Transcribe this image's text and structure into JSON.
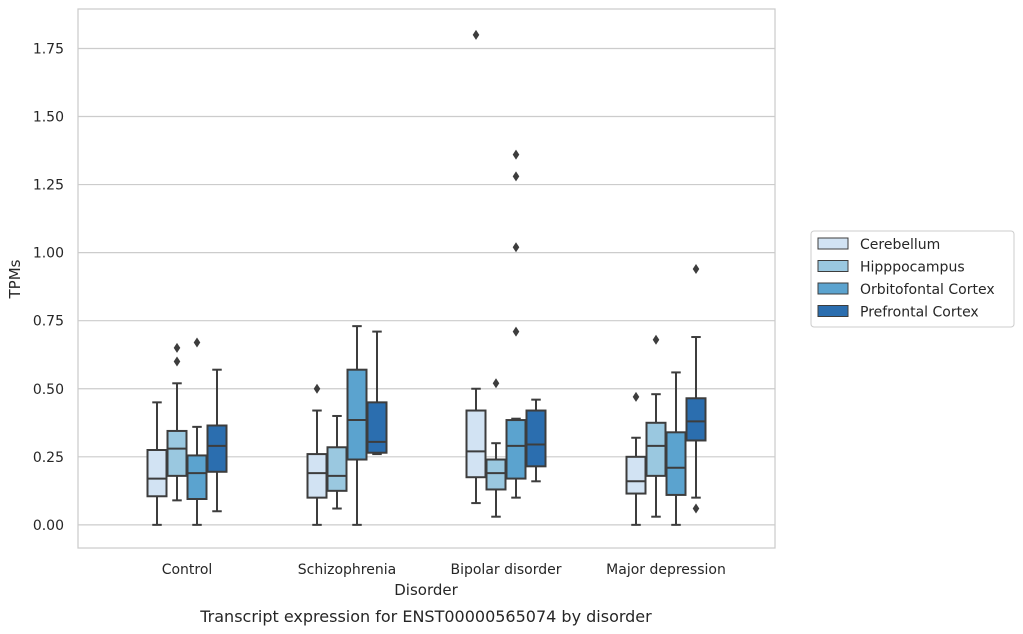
{
  "chart_data": {
    "type": "box",
    "caption": "Transcript expression for ENST00000565074 by disorder",
    "xlabel": "Disorder",
    "ylabel": "TPMs",
    "ylim": [
      -0.085,
      1.895
    ],
    "yticks": [
      0.0,
      0.25,
      0.5,
      0.75,
      1.0,
      1.25,
      1.5,
      1.75
    ],
    "ytick_labels": [
      "0.00",
      "0.25",
      "0.50",
      "0.75",
      "1.00",
      "1.25",
      "1.50",
      "1.75"
    ],
    "grid": "horizontal",
    "legend_position": "right",
    "categories": [
      "Control",
      "Schizophrenia",
      "Bipolar disorder",
      "Major depression"
    ],
    "series": [
      {
        "name": "Cerebellum",
        "color": "#d2e3f3",
        "boxes": [
          {
            "whisker_low": 0.0,
            "q1": 0.105,
            "median": 0.17,
            "q3": 0.275,
            "whisker_high": 0.45,
            "outliers": []
          },
          {
            "whisker_low": 0.0,
            "q1": 0.1,
            "median": 0.19,
            "q3": 0.26,
            "whisker_high": 0.42,
            "outliers": [
              0.5
            ]
          },
          {
            "whisker_low": 0.08,
            "q1": 0.175,
            "median": 0.27,
            "q3": 0.42,
            "whisker_high": 0.5,
            "outliers": [
              1.8
            ]
          },
          {
            "whisker_low": 0.0,
            "q1": 0.115,
            "median": 0.16,
            "q3": 0.25,
            "whisker_high": 0.32,
            "outliers": [
              0.47
            ]
          }
        ]
      },
      {
        "name": "Hipppocampus",
        "color": "#9ac8e0",
        "boxes": [
          {
            "whisker_low": 0.09,
            "q1": 0.18,
            "median": 0.28,
            "q3": 0.345,
            "whisker_high": 0.52,
            "outliers": [
              0.6,
              0.65
            ]
          },
          {
            "whisker_low": 0.06,
            "q1": 0.125,
            "median": 0.18,
            "q3": 0.285,
            "whisker_high": 0.4,
            "outliers": []
          },
          {
            "whisker_low": 0.03,
            "q1": 0.13,
            "median": 0.19,
            "q3": 0.24,
            "whisker_high": 0.3,
            "outliers": [
              0.52
            ]
          },
          {
            "whisker_low": 0.03,
            "q1": 0.18,
            "median": 0.29,
            "q3": 0.375,
            "whisker_high": 0.48,
            "outliers": [
              0.68
            ]
          }
        ]
      },
      {
        "name": "Orbitofontal Cortex",
        "color": "#5ba3cf",
        "boxes": [
          {
            "whisker_low": 0.0,
            "q1": 0.095,
            "median": 0.19,
            "q3": 0.255,
            "whisker_high": 0.36,
            "outliers": [
              0.67
            ]
          },
          {
            "whisker_low": 0.0,
            "q1": 0.24,
            "median": 0.385,
            "q3": 0.57,
            "whisker_high": 0.73,
            "outliers": []
          },
          {
            "whisker_low": 0.1,
            "q1": 0.17,
            "median": 0.29,
            "q3": 0.385,
            "whisker_high": 0.39,
            "outliers": [
              0.71,
              1.02,
              1.28,
              1.36
            ]
          },
          {
            "whisker_low": 0.0,
            "q1": 0.11,
            "median": 0.21,
            "q3": 0.34,
            "whisker_high": 0.56,
            "outliers": []
          }
        ]
      },
      {
        "name": "Prefrontal Cortex",
        "color": "#2b6eaf",
        "boxes": [
          {
            "whisker_low": 0.05,
            "q1": 0.195,
            "median": 0.29,
            "q3": 0.365,
            "whisker_high": 0.57,
            "outliers": []
          },
          {
            "whisker_low": 0.26,
            "q1": 0.265,
            "median": 0.305,
            "q3": 0.45,
            "whisker_high": 0.71,
            "outliers": []
          },
          {
            "whisker_low": 0.16,
            "q1": 0.215,
            "median": 0.295,
            "q3": 0.42,
            "whisker_high": 0.46,
            "outliers": []
          },
          {
            "whisker_low": 0.1,
            "q1": 0.31,
            "median": 0.38,
            "q3": 0.465,
            "whisker_high": 0.69,
            "outliers": [
              0.06,
              0.94
            ]
          }
        ]
      }
    ]
  }
}
